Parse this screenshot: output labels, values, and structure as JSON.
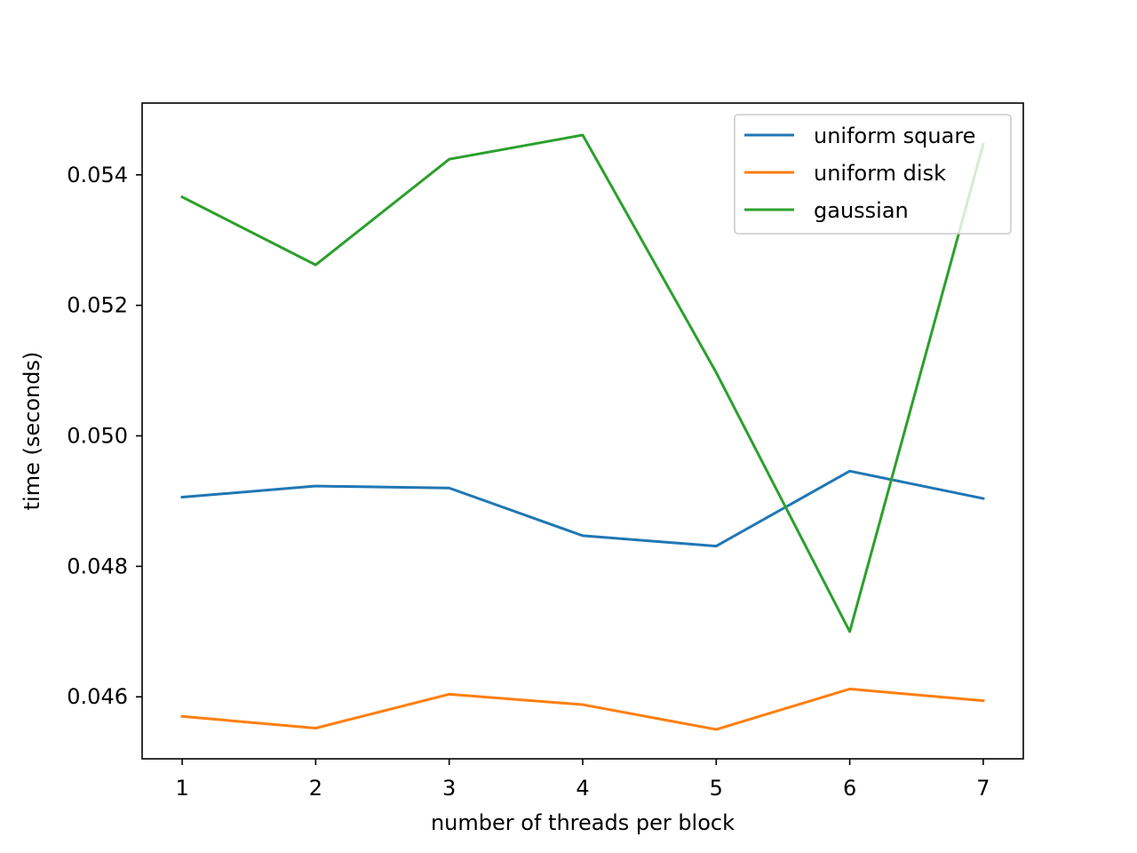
{
  "chart_data": {
    "type": "line",
    "title": "",
    "xlabel": "number of threads per block",
    "ylabel": "time (seconds)",
    "x": [
      1,
      2,
      3,
      4,
      5,
      6,
      7
    ],
    "xlim": [
      0.7,
      7.3
    ],
    "ylim": [
      0.04505,
      0.0551
    ],
    "xticks": [
      1,
      2,
      3,
      4,
      5,
      6,
      7
    ],
    "yticks": [
      0.046,
      0.048,
      0.05,
      0.052,
      0.054
    ],
    "ytick_labels": [
      "0.046",
      "0.048",
      "0.050",
      "0.052",
      "0.054"
    ],
    "grid": false,
    "legend_position": "top-right",
    "series": [
      {
        "name": "uniform square",
        "color": "#1f77b4",
        "values": [
          0.04906,
          0.04923,
          0.0492,
          0.04847,
          0.04831,
          0.04946,
          0.04904
        ]
      },
      {
        "name": "uniform disk",
        "color": "#ff7f0e",
        "values": [
          0.0457,
          0.04552,
          0.04604,
          0.04588,
          0.0455,
          0.04612,
          0.04594
        ]
      },
      {
        "name": "gaussian",
        "color": "#2ca02c",
        "values": [
          0.05366,
          0.05262,
          0.05424,
          0.05461,
          0.05097,
          0.047,
          0.05447
        ]
      }
    ]
  }
}
